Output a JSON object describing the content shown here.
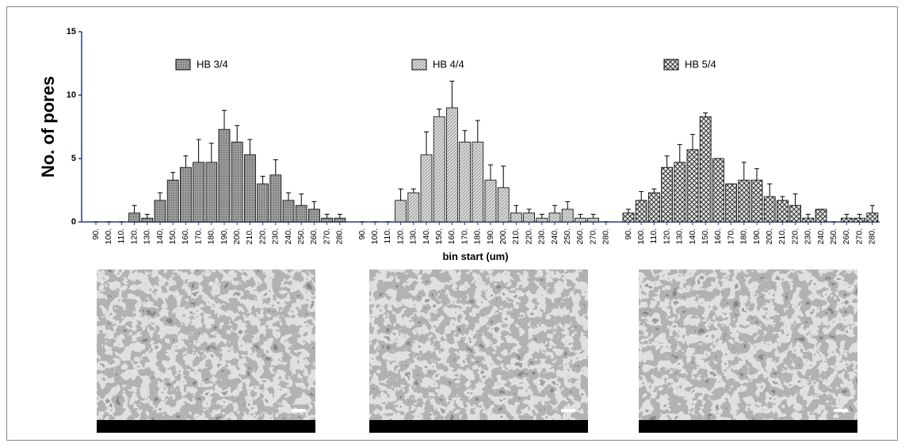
{
  "chart_data": {
    "type": "bar",
    "ylabel": "No. of pores",
    "xlabel": "bin start (um)",
    "ylim": [
      0,
      15
    ],
    "yticks": [
      0,
      5,
      10,
      15
    ],
    "categories": [
      "90.",
      "100.",
      "110.",
      "120.",
      "130.",
      "140.",
      "150.",
      "160.",
      "170.",
      "180.",
      "190.",
      "200.",
      "210.",
      "220.",
      "230.",
      "240.",
      "250.",
      "260.",
      "270.",
      "280."
    ],
    "series": [
      {
        "name": "HB 3/4",
        "color": "#8c8c8c",
        "values": [
          0,
          0,
          0,
          0.7,
          0.3,
          1.7,
          3.3,
          4.3,
          4.7,
          4.7,
          7.3,
          6.3,
          5.3,
          3,
          3.7,
          1.7,
          1.3,
          1,
          0.3,
          0.3
        ],
        "errors": [
          0,
          0,
          0,
          0.6,
          0.3,
          0.6,
          0.6,
          0.9,
          1.8,
          1.5,
          1.5,
          1.3,
          1.2,
          0.6,
          1.2,
          0.6,
          0.9,
          0.6,
          0.3,
          0.3
        ]
      },
      {
        "name": "HB 4/4",
        "color": "#cfcfcf",
        "values": [
          0,
          0,
          0,
          1.7,
          2.3,
          5.3,
          8.3,
          9,
          6.3,
          6.3,
          3.3,
          2.7,
          0.7,
          0.7,
          0.3,
          0.7,
          1,
          0.3,
          0.3,
          0
        ],
        "errors": [
          0,
          0,
          0,
          0.9,
          0.3,
          1.8,
          0.6,
          2.1,
          0.9,
          1.7,
          1.2,
          1.7,
          0.6,
          0.3,
          0.3,
          0.6,
          0.6,
          0.3,
          0.3,
          0
        ]
      },
      {
        "name": "HB 5/4",
        "color": "#b0b0b0",
        "values": [
          0.7,
          1.7,
          2.3,
          4.3,
          4.7,
          5.7,
          8.3,
          5,
          3,
          3.3,
          3.3,
          2,
          1.7,
          1.3,
          0.3,
          1,
          0,
          0.3,
          0.3,
          0.7
        ],
        "errors": [
          0.3,
          0.7,
          0.3,
          0.9,
          1.4,
          1.2,
          0.3,
          0,
          0,
          1.4,
          0.9,
          1,
          0.3,
          0.9,
          0.3,
          0,
          0,
          0.3,
          0.3,
          0.6
        ]
      }
    ]
  }
}
